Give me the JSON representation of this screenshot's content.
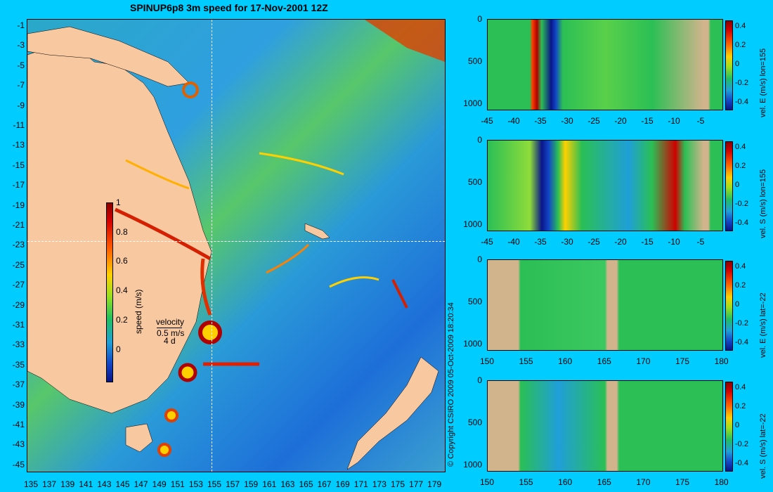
{
  "title": "SPINUP6p8 3m speed for 17-Nov-2001 12Z",
  "map": {
    "lat_ticks": [
      "-1",
      "-3",
      "-5",
      "-7",
      "-9",
      "-11",
      "-13",
      "-15",
      "-17",
      "-19",
      "-21",
      "-23",
      "-25",
      "-27",
      "-29",
      "-31",
      "-33",
      "-35",
      "-37",
      "-39",
      "-41",
      "-43",
      "-45"
    ],
    "lon_ticks": [
      "135",
      "137",
      "139",
      "141",
      "143",
      "145",
      "147",
      "149",
      "151",
      "153",
      "155",
      "157",
      "159",
      "161",
      "163",
      "165",
      "167",
      "169",
      "171",
      "173",
      "175",
      "177",
      "179"
    ],
    "colorbar_ticks": [
      "1",
      "0.8",
      "0.6",
      "0.4",
      "0.2",
      "0"
    ],
    "colorbar_label": "speed (m/s)",
    "velocity_label": "velocity",
    "velocity_scale": "0.5 m/s",
    "velocity_time": "4 d",
    "land_color": "#f8c8a0"
  },
  "copyright": "© Copyright CSIRO 2009   05-Oct-2009 18:20:34",
  "sections": [
    {
      "x_ticks": [
        "-45",
        "-40",
        "-35",
        "-30",
        "-25",
        "-20",
        "-15",
        "-10",
        "-5"
      ],
      "y_ticks": [
        "0",
        "500",
        "1000"
      ],
      "cbar_ticks": [
        "0.4",
        "0.2",
        "0",
        "-0.2",
        "-0.4"
      ],
      "label": "vel. E (m/s) lon=155"
    },
    {
      "x_ticks": [
        "-45",
        "-40",
        "-35",
        "-30",
        "-25",
        "-20",
        "-15",
        "-10",
        "-5"
      ],
      "y_ticks": [
        "0",
        "500",
        "1000"
      ],
      "cbar_ticks": [
        "0.4",
        "0.2",
        "0",
        "-0.2",
        "-0.4"
      ],
      "label": "vel. S (m/s) lon=155"
    },
    {
      "x_ticks": [
        "150",
        "155",
        "160",
        "165",
        "170",
        "175",
        "180"
      ],
      "y_ticks": [
        "0",
        "500",
        "1000"
      ],
      "cbar_ticks": [
        "0.4",
        "0.2",
        "0",
        "-0.2",
        "-0.4"
      ],
      "label": "vel. E (m/s) lat=-22"
    },
    {
      "x_ticks": [
        "150",
        "155",
        "160",
        "165",
        "170",
        "175",
        "180"
      ],
      "y_ticks": [
        "0",
        "500",
        "1000"
      ],
      "cbar_ticks": [
        "0.4",
        "0.2",
        "0",
        "-0.2",
        "-0.4"
      ],
      "label": "vel. S (m/s) lat=-22"
    }
  ],
  "colors": {
    "background": "#00ccff",
    "ocean": "#3a8fd8",
    "section_land": "#d2b48c"
  }
}
